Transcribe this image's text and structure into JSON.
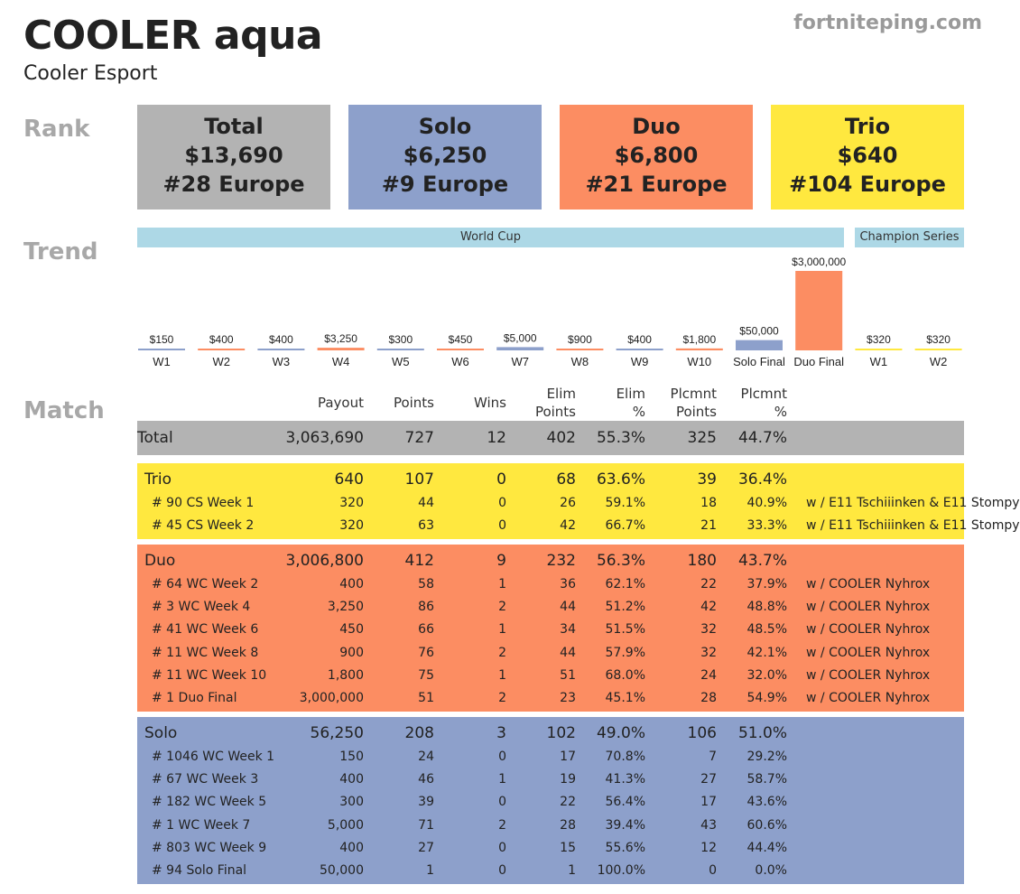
{
  "header": {
    "player": "COOLER aqua",
    "team": "Cooler Esport",
    "site": "fortniteping.com"
  },
  "sections": {
    "rank": "Rank",
    "trend": "Trend",
    "match": "Match"
  },
  "rank_boxes": [
    {
      "title": "Total",
      "amount": "$13,690",
      "rank": "#28 Europe",
      "color": "#b3b3b3"
    },
    {
      "title": "Solo",
      "amount": "$6,250",
      "rank": "#9 Europe",
      "color": "#8da0cb"
    },
    {
      "title": "Duo",
      "amount": "$6,800",
      "rank": "#21 Europe",
      "color": "#fc8d62"
    },
    {
      "title": "Trio",
      "amount": "$640",
      "rank": "#104 Europe",
      "color": "#ffe83f"
    }
  ],
  "chart_data": {
    "type": "bar",
    "groups": [
      "World Cup",
      "Champion Series"
    ],
    "categories": [
      "W1",
      "W2",
      "W3",
      "W4",
      "W5",
      "W6",
      "W7",
      "W8",
      "W9",
      "W10",
      "Solo Final",
      "Duo Final",
      "W1",
      "W2"
    ],
    "values": [
      150,
      400,
      400,
      3250,
      300,
      450,
      5000,
      900,
      400,
      1800,
      50000,
      3000000,
      320,
      320
    ],
    "labels": [
      "$150",
      "$400",
      "$400",
      "$3,250",
      "$300",
      "$450",
      "$5,000",
      "$900",
      "$400",
      "$1,800",
      "$50,000",
      "$3,000,000",
      "$320",
      "$320"
    ],
    "modes": [
      "solo",
      "duo",
      "solo",
      "duo",
      "solo",
      "duo",
      "solo",
      "duo",
      "solo",
      "duo",
      "solo",
      "duo",
      "trio",
      "trio"
    ],
    "colors": {
      "solo": "#8da0cb",
      "duo": "#fc8d62",
      "trio": "#ffe83f"
    },
    "scale": "sqrt"
  },
  "table": {
    "headers": [
      {
        "line1": "Payout",
        "line2": ""
      },
      {
        "line1": "Points",
        "line2": ""
      },
      {
        "line1": "Wins",
        "line2": ""
      },
      {
        "line1": "Elim",
        "line2": "Points"
      },
      {
        "line1": "Elim",
        "line2": "%"
      },
      {
        "line1": "Plcmnt",
        "line2": "Points"
      },
      {
        "line1": "Plcmnt",
        "line2": "%"
      }
    ],
    "total": {
      "label": "Total",
      "values": [
        "3,063,690",
        "727",
        "12",
        "402",
        "55.3%",
        "325",
        "44.7%"
      ],
      "color": "#b3b3b3"
    },
    "groups": [
      {
        "label": "Trio",
        "color": "#ffe83f",
        "values": [
          "640",
          "107",
          "0",
          "68",
          "63.6%",
          "39",
          "36.4%"
        ],
        "rows": [
          {
            "label": "# 90 CS Week 1",
            "values": [
              "320",
              "44",
              "0",
              "26",
              "59.1%",
              "18",
              "40.9%"
            ],
            "note": "w / E11 Tschiiinken & E11 Stompy"
          },
          {
            "label": "# 45 CS Week 2",
            "values": [
              "320",
              "63",
              "0",
              "42",
              "66.7%",
              "21",
              "33.3%"
            ],
            "note": "w / E11 Tschiiinken & E11 Stompy"
          }
        ]
      },
      {
        "label": "Duo",
        "color": "#fc8d62",
        "values": [
          "3,006,800",
          "412",
          "9",
          "232",
          "56.3%",
          "180",
          "43.7%"
        ],
        "rows": [
          {
            "label": "# 64 WC Week 2",
            "values": [
              "400",
              "58",
              "1",
              "36",
              "62.1%",
              "22",
              "37.9%"
            ],
            "note": "w / COOLER Nyhrox"
          },
          {
            "label": "# 3 WC Week 4",
            "values": [
              "3,250",
              "86",
              "2",
              "44",
              "51.2%",
              "42",
              "48.8%"
            ],
            "note": "w / COOLER Nyhrox"
          },
          {
            "label": "# 41 WC Week 6",
            "values": [
              "450",
              "66",
              "1",
              "34",
              "51.5%",
              "32",
              "48.5%"
            ],
            "note": "w / COOLER Nyhrox"
          },
          {
            "label": "# 11 WC Week 8",
            "values": [
              "900",
              "76",
              "2",
              "44",
              "57.9%",
              "32",
              "42.1%"
            ],
            "note": "w / COOLER Nyhrox"
          },
          {
            "label": "# 11 WC Week 10",
            "values": [
              "1,800",
              "75",
              "1",
              "51",
              "68.0%",
              "24",
              "32.0%"
            ],
            "note": "w / COOLER Nyhrox"
          },
          {
            "label": "# 1 Duo Final",
            "values": [
              "3,000,000",
              "51",
              "2",
              "23",
              "45.1%",
              "28",
              "54.9%"
            ],
            "note": "w / COOLER Nyhrox"
          }
        ]
      },
      {
        "label": "Solo",
        "color": "#8da0cb",
        "values": [
          "56,250",
          "208",
          "3",
          "102",
          "49.0%",
          "106",
          "51.0%"
        ],
        "rows": [
          {
            "label": "# 1046 WC Week 1",
            "values": [
              "150",
              "24",
              "0",
              "17",
              "70.8%",
              "7",
              "29.2%"
            ],
            "note": ""
          },
          {
            "label": "# 67 WC Week 3",
            "values": [
              "400",
              "46",
              "1",
              "19",
              "41.3%",
              "27",
              "58.7%"
            ],
            "note": ""
          },
          {
            "label": "# 182 WC Week 5",
            "values": [
              "300",
              "39",
              "0",
              "22",
              "56.4%",
              "17",
              "43.6%"
            ],
            "note": ""
          },
          {
            "label": "# 1 WC Week 7",
            "values": [
              "5,000",
              "71",
              "2",
              "28",
              "39.4%",
              "43",
              "60.6%"
            ],
            "note": ""
          },
          {
            "label": "# 803 WC Week 9",
            "values": [
              "400",
              "27",
              "0",
              "15",
              "55.6%",
              "12",
              "44.4%"
            ],
            "note": ""
          },
          {
            "label": "# 94 Solo Final",
            "values": [
              "50,000",
              "1",
              "0",
              "1",
              "100.0%",
              "0",
              "0.0%"
            ],
            "note": ""
          }
        ]
      }
    ]
  }
}
